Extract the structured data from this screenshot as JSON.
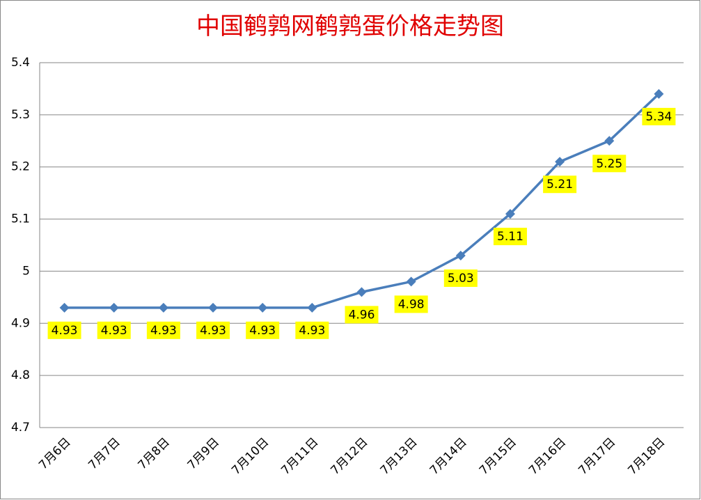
{
  "chart_data": {
    "type": "line",
    "title": "中国鹌鹑网鹌鹑蛋价格走势图",
    "categories": [
      "7月6日",
      "7月7日",
      "7月8日",
      "7月9日",
      "7月10日",
      "7月11日",
      "7月12日",
      "7月13日",
      "7月14日",
      "7月15日",
      "7月16日",
      "7月17日",
      "7月18日"
    ],
    "values": [
      4.93,
      4.93,
      4.93,
      4.93,
      4.93,
      4.93,
      4.96,
      4.98,
      5.03,
      5.11,
      5.21,
      5.25,
      5.34
    ],
    "color": "#4a7ebb",
    "label_color": "#ffff00",
    "ylim": [
      4.7,
      5.4
    ],
    "yticks": [
      4.7,
      4.8,
      4.9,
      5,
      5.1,
      5.2,
      5.3,
      5.4
    ],
    "grid": true
  }
}
